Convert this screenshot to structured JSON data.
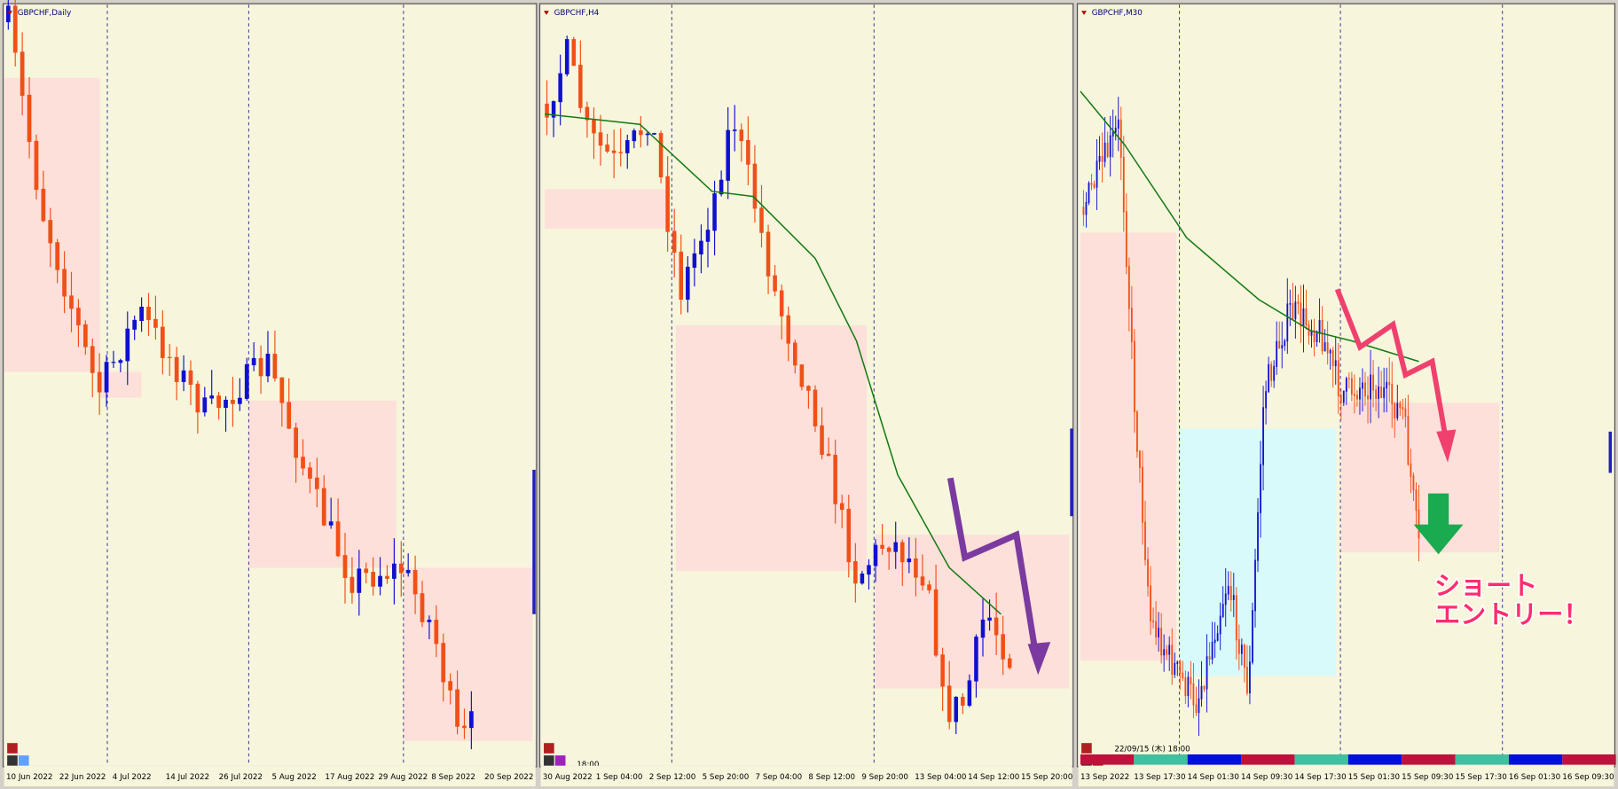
{
  "panels": [
    {
      "title": "GBPCHF,Daily",
      "x_labels": [
        "10 Jun 2022",
        "22 Jun 2022",
        "4 Jul 2022",
        "14 Jul 2022",
        "26 Jul 2022",
        "5 Aug 2022",
        "17 Aug 2022",
        "29 Aug 2022",
        "8 Sep 2022",
        "20 Sep 2022"
      ]
    },
    {
      "title": "GBPCHF,H4",
      "x_labels": [
        "30 Aug 2022",
        "1 Sep 04:00",
        "2 Sep 12:00",
        "5 Sep 20:00",
        "7 Sep 04:00",
        "8 Sep 12:00",
        "9 Sep 20:00",
        "13 Sep 04:00",
        "14 Sep 12:00",
        "15 Sep 20:00"
      ],
      "time": "18:00"
    },
    {
      "title": "GBPCHF,M30",
      "x_labels": [
        "13 Sep 2022",
        "13 Sep 17:30",
        "14 Sep 01:30",
        "14 Sep 09:30",
        "14 Sep 17:30",
        "15 Sep 01:30",
        "15 Sep 09:30",
        "15 Sep 17:30",
        "16 Sep 01:30",
        "16 Sep 09:30"
      ],
      "time": "22/09/15 (木) 18:00"
    }
  ],
  "annotation": {
    "line1": "ショート",
    "line2": "エントリー！"
  }
}
